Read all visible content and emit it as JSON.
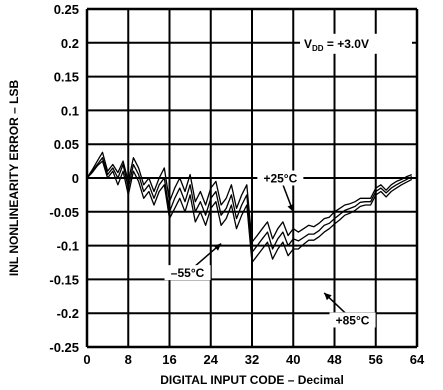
{
  "chart_data": {
    "type": "line",
    "xlabel": "DIGITAL INPUT CODE – Decimal",
    "ylabel": "INL NONLINEARITY ERROR – LSB",
    "xlim": [
      0,
      64
    ],
    "ylim": [
      -0.25,
      0.25
    ],
    "xticks": [
      0,
      8,
      16,
      24,
      32,
      40,
      48,
      56,
      64
    ],
    "yticks": [
      0.25,
      0.2,
      0.15,
      0.1,
      0.05,
      0,
      -0.05,
      -0.1,
      -0.15,
      -0.2,
      -0.25
    ],
    "ytick_labels": [
      "0.25",
      "0.2",
      "0.15",
      "0.1",
      "0.05",
      "0",
      "-0.05",
      "-0.1",
      "-0.15",
      "-0.2",
      "-0.25"
    ],
    "grid": true,
    "condition": {
      "prefix": "V",
      "subscript": "DD",
      "suffix": " = +3.0V"
    },
    "series": [
      {
        "name": "+25°C",
        "color": "#000000",
        "x": [
          0,
          1,
          2,
          3,
          4,
          5,
          6,
          7,
          8,
          9,
          10,
          11,
          12,
          13,
          14,
          15,
          16,
          17,
          18,
          19,
          20,
          21,
          22,
          23,
          24,
          25,
          26,
          27,
          28,
          29,
          30,
          31,
          32,
          33,
          34,
          35,
          36,
          37,
          38,
          39,
          40,
          41,
          42,
          43,
          44,
          45,
          46,
          47,
          48,
          49,
          50,
          51,
          52,
          53,
          54,
          55,
          56,
          57,
          58,
          59,
          60,
          61,
          62,
          63
        ],
        "y": [
          0.0,
          0.012,
          0.025,
          0.038,
          0.01,
          0.02,
          0.008,
          0.025,
          -0.005,
          0.03,
          0.015,
          -0.01,
          0.0,
          -0.02,
          0.0,
          0.015,
          -0.035,
          -0.015,
          0.0,
          -0.02,
          0.005,
          -0.035,
          -0.02,
          -0.04,
          -0.015,
          -0.005,
          -0.04,
          -0.03,
          -0.01,
          -0.045,
          -0.025,
          -0.01,
          -0.095,
          -0.085,
          -0.075,
          -0.065,
          -0.09,
          -0.075,
          -0.065,
          -0.085,
          -0.075,
          -0.08,
          -0.075,
          -0.07,
          -0.072,
          -0.067,
          -0.06,
          -0.058,
          -0.05,
          -0.045,
          -0.04,
          -0.038,
          -0.035,
          -0.03,
          -0.03,
          -0.03,
          -0.015,
          -0.01,
          -0.018,
          -0.01,
          -0.005,
          -0.002,
          0.002,
          0.005
        ]
      },
      {
        "name": "-55°C",
        "color": "#000000",
        "x": [
          0,
          1,
          2,
          3,
          4,
          5,
          6,
          7,
          8,
          9,
          10,
          11,
          12,
          13,
          14,
          15,
          16,
          17,
          18,
          19,
          20,
          21,
          22,
          23,
          24,
          25,
          26,
          27,
          28,
          29,
          30,
          31,
          32,
          33,
          34,
          35,
          36,
          37,
          38,
          39,
          40,
          41,
          42,
          43,
          44,
          45,
          46,
          47,
          48,
          49,
          50,
          51,
          52,
          53,
          54,
          55,
          56,
          57,
          58,
          59,
          60,
          61,
          62,
          63
        ],
        "y": [
          0.0,
          0.01,
          0.02,
          0.03,
          0.005,
          0.015,
          0.0,
          0.02,
          -0.015,
          0.02,
          0.005,
          -0.02,
          -0.01,
          -0.03,
          -0.01,
          0.0,
          -0.05,
          -0.03,
          -0.015,
          -0.035,
          -0.01,
          -0.05,
          -0.035,
          -0.055,
          -0.03,
          -0.02,
          -0.055,
          -0.045,
          -0.025,
          -0.06,
          -0.04,
          -0.025,
          -0.11,
          -0.1,
          -0.09,
          -0.08,
          -0.105,
          -0.09,
          -0.08,
          -0.1,
          -0.09,
          -0.093,
          -0.088,
          -0.083,
          -0.083,
          -0.078,
          -0.07,
          -0.067,
          -0.06,
          -0.054,
          -0.048,
          -0.045,
          -0.042,
          -0.036,
          -0.035,
          -0.035,
          -0.02,
          -0.015,
          -0.022,
          -0.015,
          -0.01,
          -0.006,
          -0.002,
          0.002
        ]
      },
      {
        "name": "+85°C",
        "color": "#000000",
        "x": [
          0,
          1,
          2,
          3,
          4,
          5,
          6,
          7,
          8,
          9,
          10,
          11,
          12,
          13,
          14,
          15,
          16,
          17,
          18,
          19,
          20,
          21,
          22,
          23,
          24,
          25,
          26,
          27,
          28,
          29,
          30,
          31,
          32,
          33,
          34,
          35,
          36,
          37,
          38,
          39,
          40,
          41,
          42,
          43,
          44,
          45,
          46,
          47,
          48,
          49,
          50,
          51,
          52,
          53,
          54,
          55,
          56,
          57,
          58,
          59,
          60,
          61,
          62,
          63
        ],
        "y": [
          0.0,
          0.008,
          0.018,
          0.025,
          0.0,
          0.01,
          -0.01,
          0.01,
          -0.025,
          0.01,
          -0.005,
          -0.03,
          -0.02,
          -0.04,
          -0.02,
          -0.01,
          -0.06,
          -0.045,
          -0.03,
          -0.05,
          -0.025,
          -0.065,
          -0.05,
          -0.07,
          -0.045,
          -0.035,
          -0.07,
          -0.06,
          -0.04,
          -0.075,
          -0.055,
          -0.04,
          -0.125,
          -0.115,
          -0.105,
          -0.095,
          -0.12,
          -0.105,
          -0.095,
          -0.115,
          -0.105,
          -0.105,
          -0.098,
          -0.092,
          -0.092,
          -0.087,
          -0.08,
          -0.075,
          -0.068,
          -0.062,
          -0.055,
          -0.052,
          -0.048,
          -0.042,
          -0.04,
          -0.04,
          -0.025,
          -0.02,
          -0.028,
          -0.02,
          -0.015,
          -0.01,
          -0.006,
          -0.002
        ]
      }
    ],
    "annotations": [
      {
        "text": "+25°C",
        "x": 37.5,
        "y": 0.0,
        "arrow_to": [
          40,
          -0.05
        ]
      },
      {
        "text": "–55°C",
        "x": 19.5,
        "y": -0.14,
        "arrow_to": [
          26,
          -0.097
        ]
      },
      {
        "text": "+85°C",
        "x": 51.5,
        "y": -0.21,
        "arrow_to": [
          46,
          -0.17
        ]
      }
    ]
  }
}
